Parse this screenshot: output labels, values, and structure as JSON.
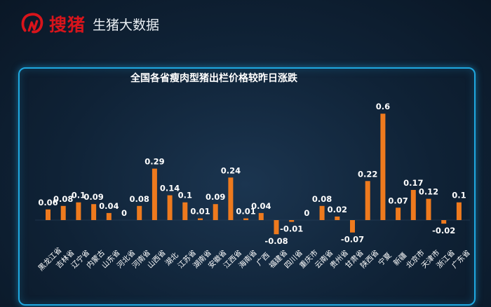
{
  "brand": {
    "name": "搜猪",
    "subtitle": "生猪大数据",
    "accent": "#d8141b"
  },
  "chart_data": {
    "type": "bar",
    "title": "全国各省瘦肉型猪出栏价格较昨日涨跌",
    "categories": [
      "黑龙江省",
      "吉林省",
      "辽宁省",
      "内蒙古",
      "山东省",
      "河北省",
      "河南省",
      "山西省",
      "湖北",
      "江苏省",
      "湖南省",
      "安徽省",
      "江西省",
      "海南省",
      "广西",
      "福建省",
      "四川省",
      "重庆市",
      "云南省",
      "贵州省",
      "甘肃省",
      "陕西省",
      "宁夏",
      "新疆",
      "北京市",
      "天津市",
      "浙江省",
      "广东省"
    ],
    "values": [
      0.06,
      0.08,
      0.1,
      0.09,
      0.04,
      0,
      0.08,
      0.29,
      0.14,
      0.1,
      0.01,
      0.09,
      0.24,
      0.01,
      0.04,
      -0.08,
      -0.01,
      0,
      0.08,
      0.02,
      -0.07,
      0.22,
      0.6,
      0.07,
      0.17,
      0.12,
      -0.02,
      0.1
    ],
    "labels": [
      "0.06",
      "0.08",
      "0.1",
      "0.09",
      "0.04",
      "0",
      "0.08",
      "0.29",
      "0.14",
      "0.1",
      "0.01",
      "0.09",
      "0.24",
      "0.01",
      "0.04",
      "-0.08",
      "-0.01",
      "0",
      "0.08",
      "0.02",
      "-0.07",
      "0.22",
      "0.6",
      "0.07",
      "0.17",
      "0.12",
      "-0.02",
      "0.1"
    ],
    "bar_color": "#ee7a1e",
    "ylim": [
      -0.08,
      0.6
    ],
    "grid": false,
    "legend": false
  }
}
